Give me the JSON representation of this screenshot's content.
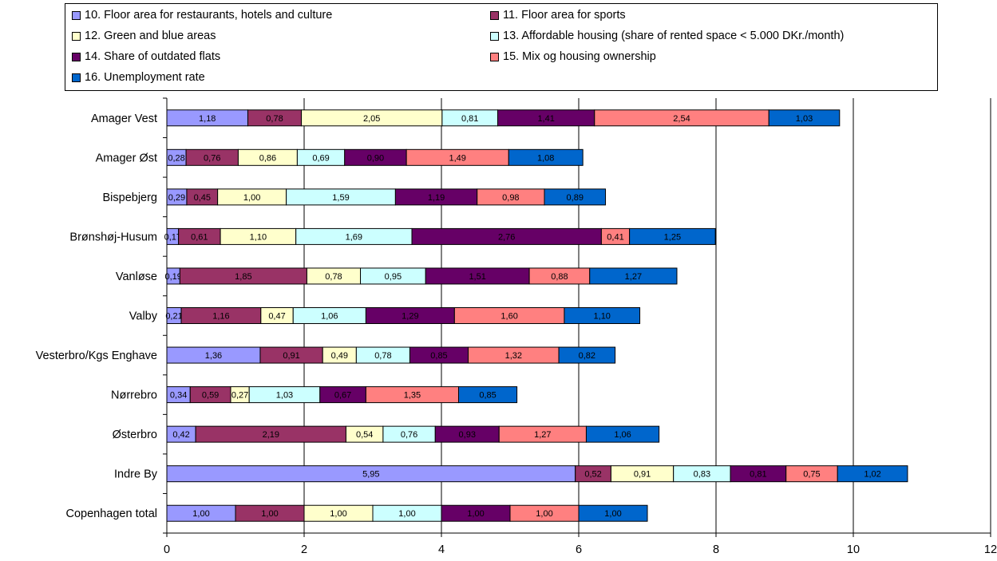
{
  "chart_data": {
    "type": "bar",
    "orientation": "horizontal",
    "stacked": true,
    "categories": [
      "Amager Vest",
      "Amager Øst",
      "Bispebjerg",
      "Brønshøj-Husum",
      "Vanløse",
      "Valby",
      "Vesterbro/Kgs Enghave",
      "Nørrebro",
      "Østerbro",
      "Indre By",
      "Copenhagen total"
    ],
    "series": [
      {
        "name": "10. Floor area for restaurants, hotels and culture",
        "color": "#9999ff",
        "values": [
          1.18,
          0.28,
          0.29,
          0.17,
          0.19,
          0.21,
          1.36,
          0.34,
          0.42,
          5.95,
          1.0
        ],
        "labels": [
          "1,18",
          "0,28",
          "0,29",
          "0,17",
          "0,19",
          "0,21",
          "1,36",
          "0,34",
          "0,42",
          "5,95",
          "1,00"
        ]
      },
      {
        "name": "11. Floor area for sports",
        "color": "#993366",
        "values": [
          0.78,
          0.76,
          0.45,
          0.61,
          1.85,
          1.16,
          0.91,
          0.59,
          2.19,
          0.52,
          1.0
        ],
        "labels": [
          "0,78",
          "0,76",
          "0,45",
          "0,61",
          "1,85",
          "1,16",
          "0,91",
          "0,59",
          "2,19",
          "0,52",
          "1,00"
        ]
      },
      {
        "name": "12. Green and blue areas",
        "color": "#ffffcc",
        "values": [
          2.05,
          0.86,
          1.0,
          1.1,
          0.78,
          0.47,
          0.49,
          0.27,
          0.54,
          0.91,
          1.0
        ],
        "labels": [
          "2,05",
          "0,86",
          "1,00",
          "1,10",
          "0,78",
          "0,47",
          "0,49",
          "0,27",
          "0,54",
          "0,91",
          "1,00"
        ]
      },
      {
        "name": "13. Affordable housing (share of rented space < 5.000 DKr./month)",
        "color": "#ccffff",
        "values": [
          0.81,
          0.69,
          1.59,
          1.69,
          0.95,
          1.06,
          0.78,
          1.03,
          0.76,
          0.83,
          1.0
        ],
        "labels": [
          "0,81",
          "0,69",
          "1,59",
          "1,69",
          "0,95",
          "1,06",
          "0,78",
          "1,03",
          "0,76",
          "0,83",
          "1,00"
        ]
      },
      {
        "name": "14. Share of outdated flats",
        "color": "#660066",
        "values": [
          1.41,
          0.9,
          1.19,
          2.76,
          1.51,
          1.29,
          0.85,
          0.67,
          0.93,
          0.81,
          1.0
        ],
        "labels": [
          "1,41",
          "0,90",
          "1,19",
          "2,76",
          "1,51",
          "1,29",
          "0,85",
          "0,67",
          "0,93",
          "0,81",
          "1,00"
        ]
      },
      {
        "name": "15. Mix og housing ownership",
        "color": "#ff8080",
        "values": [
          2.54,
          1.49,
          0.98,
          0.41,
          0.88,
          1.6,
          1.32,
          1.35,
          1.27,
          0.75,
          1.0
        ],
        "labels": [
          "2,54",
          "1,49",
          "0,98",
          "0,41",
          "0,88",
          "1,60",
          "1,32",
          "1,35",
          "1,27",
          "0,75",
          "1,00"
        ]
      },
      {
        "name": "16. Unemployment rate",
        "color": "#0066cc",
        "values": [
          1.03,
          1.08,
          0.89,
          1.25,
          1.27,
          1.1,
          0.82,
          0.85,
          1.06,
          1.02,
          1.0
        ],
        "labels": [
          "1,03",
          "1,08",
          "0,89",
          "1,25",
          "1,27",
          "1,10",
          "0,82",
          "0,85",
          "1,06",
          "1,02",
          "1,00"
        ]
      }
    ],
    "xlim": [
      0,
      12
    ],
    "xticks": [
      0,
      2,
      4,
      6,
      8,
      10,
      12
    ],
    "xtick_labels": [
      "0",
      "2",
      "4",
      "6",
      "8",
      "10",
      "12"
    ],
    "grid": "vertical major gridlines",
    "legend_position": "top",
    "title": "",
    "xlabel": "",
    "ylabel": ""
  }
}
